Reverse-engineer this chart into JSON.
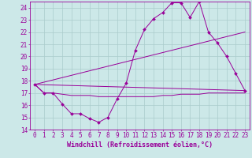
{
  "xlabel": "Windchill (Refroidissement éolien,°C)",
  "background_color": "#cce8e8",
  "grid_color": "#aacccc",
  "line_color": "#990099",
  "x_min": 0,
  "x_max": 23,
  "y_min": 14,
  "y_max": 24,
  "series1_x": [
    0,
    1,
    2,
    3,
    4,
    5,
    6,
    7,
    8,
    9,
    10,
    11,
    12,
    13,
    14,
    15,
    16,
    17,
    18,
    19,
    20,
    21,
    22,
    23
  ],
  "series1_y": [
    17.7,
    17.0,
    17.0,
    16.1,
    15.3,
    15.3,
    14.9,
    14.6,
    15.0,
    16.5,
    17.8,
    20.5,
    22.2,
    23.1,
    23.6,
    24.4,
    24.4,
    23.2,
    24.5,
    22.0,
    21.1,
    20.0,
    18.6,
    17.2
  ],
  "series2_x": [
    0,
    1,
    2,
    3,
    4,
    5,
    6,
    7,
    8,
    9,
    10,
    11,
    12,
    13,
    14,
    15,
    16,
    17,
    18,
    19,
    20,
    21,
    22,
    23
  ],
  "series2_y": [
    17.7,
    17.0,
    17.0,
    16.9,
    16.8,
    16.8,
    16.8,
    16.7,
    16.7,
    16.7,
    16.7,
    16.7,
    16.7,
    16.7,
    16.8,
    16.8,
    16.9,
    16.9,
    16.9,
    17.0,
    17.0,
    17.0,
    17.0,
    17.0
  ],
  "series3_x": [
    0,
    23
  ],
  "series3_y": [
    17.7,
    22.0
  ],
  "series4_x": [
    0,
    23
  ],
  "series4_y": [
    17.7,
    17.2
  ],
  "font_size_axis": 5.5,
  "font_size_label": 6.0
}
